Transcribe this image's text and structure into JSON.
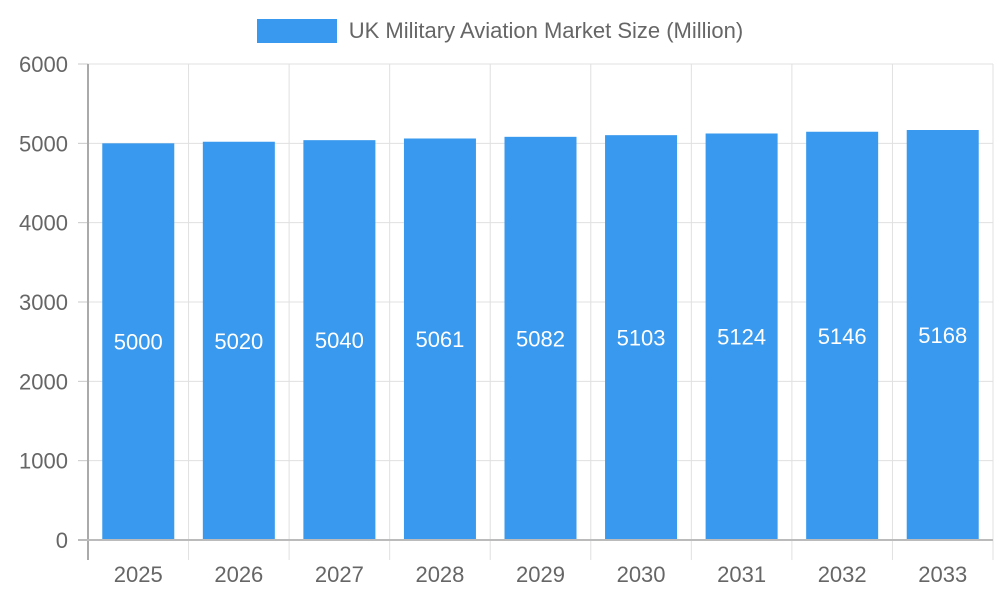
{
  "chart_data": {
    "type": "bar",
    "title": "",
    "legend": [
      "UK Military Aviation Market Size (Million)"
    ],
    "legend_position": "top",
    "xlabel": "",
    "ylabel": "",
    "categories": [
      "2025",
      "2026",
      "2027",
      "2028",
      "2029",
      "2030",
      "2031",
      "2032",
      "2033"
    ],
    "series": [
      {
        "name": "UK Military Aviation Market Size (Million)",
        "values": [
          5000,
          5020,
          5040,
          5061,
          5082,
          5103,
          5124,
          5146,
          5168
        ],
        "color": "#3899ee"
      }
    ],
    "ylim": [
      0,
      6000
    ],
    "yticks": [
      0,
      1000,
      2000,
      3000,
      4000,
      5000,
      6000
    ],
    "grid": true,
    "data_labels": true
  },
  "legend": {
    "label": "UK Military Aviation Market Size (Million)",
    "color": "#3899ee"
  }
}
